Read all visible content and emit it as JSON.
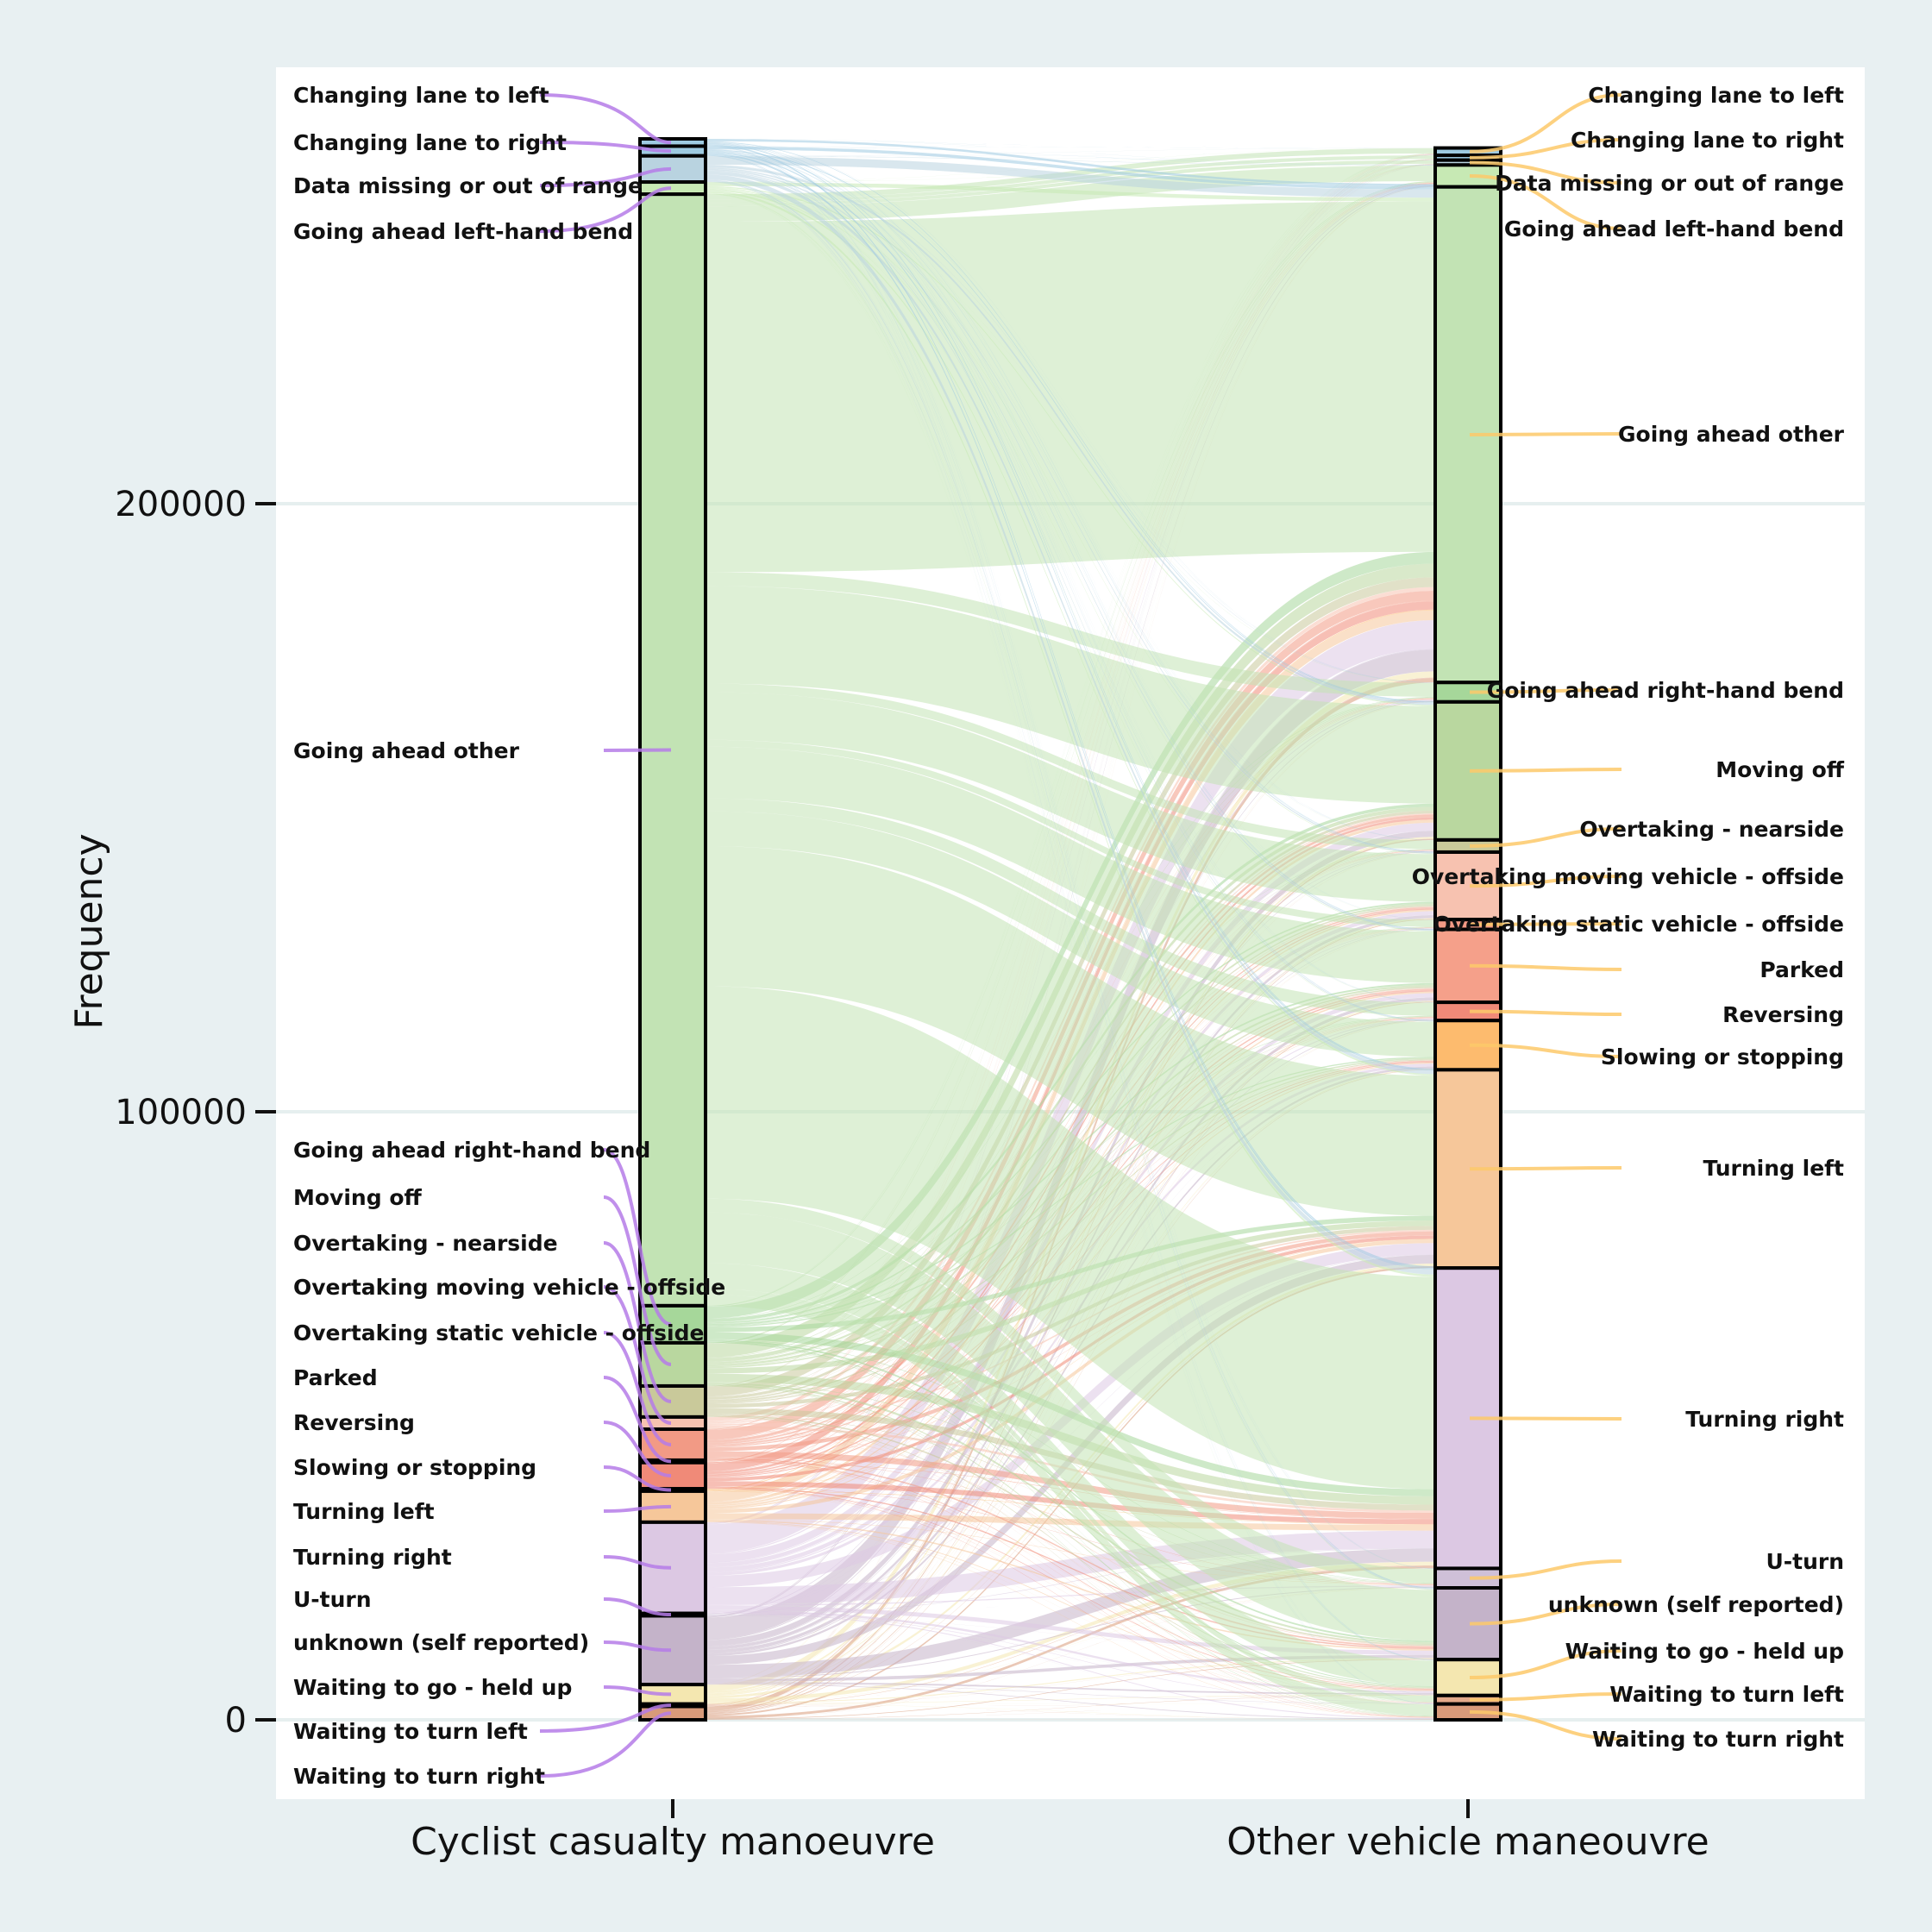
{
  "chart_data": {
    "type": "alluvial",
    "title": "",
    "ylabel": "Frequency",
    "xlabel": "",
    "axes": [
      "Cyclist casualty manoeuvre",
      "Other vehicle maneouvre"
    ],
    "y_ticks": [
      0,
      100000,
      200000
    ],
    "ylim": [
      -13000,
      272000
    ],
    "grid": true,
    "categories": [
      "Changing lane to left",
      "Changing lane to right",
      "Data missing or out of range",
      "Going ahead left-hand bend",
      "Going ahead other",
      "Going ahead right-hand bend",
      "Moving off",
      "Overtaking - nearside",
      "Overtaking moving vehicle - offside",
      "Overtaking static vehicle - offside",
      "Parked",
      "Reversing",
      "Slowing or stopping",
      "Turning left",
      "Turning right",
      "U-turn",
      "unknown (self reported)",
      "Waiting to go - held up",
      "Waiting to turn left",
      "Waiting to turn right"
    ],
    "colors": {
      "Changing lane to left": "#9ecae1",
      "Changing lane to right": "#9ecae1",
      "Data missing or out of range": "#b9d3e0",
      "Going ahead left-hand bend": "#c7e9b4",
      "Going ahead other": "#c2e3b4",
      "Going ahead right-hand bend": "#a6d79a",
      "Moving off": "#b9d79f",
      "Overtaking - nearside": "#c9c99a",
      "Overtaking moving vehicle - offside": "#f7c2b0",
      "Overtaking static vehicle - offside": "#f29a85",
      "Parked": "#f5a08a",
      "Reversing": "#f08a78",
      "Slowing or stopping": "#fdbb6e",
      "Turning left": "#f6c79a",
      "Turning right": "#dcc8e3",
      "U-turn": "#cfc0d8",
      "unknown (self reported)": "#c4b3c9",
      "Waiting to go - held up": "#f4e7b0",
      "Waiting to turn left": "#e3a98a",
      "Waiting to turn right": "#d89a7a"
    },
    "left_totals": {
      "Changing lane to left": 1200,
      "Changing lane to right": 1600,
      "Data missing or out of range": 4300,
      "Going ahead left-hand bend": 2000,
      "Going ahead other": 182800,
      "Going ahead right-hand bend": 6100,
      "Moving off": 7100,
      "Overtaking - nearside": 5100,
      "Overtaking moving vehicle - offside": 2000,
      "Overtaking static vehicle - offside": 5100,
      "Parked": 400,
      "Reversing": 4300,
      "Slowing or stopping": 400,
      "Turning left": 5100,
      "Turning right": 15000,
      "U-turn": 400,
      "unknown (self reported)": 11300,
      "Waiting to go - held up": 3200,
      "Waiting to turn left": 400,
      "Waiting to turn right": 2200
    },
    "right_totals": {
      "Changing lane to left": 1200,
      "Changing lane to right": 800,
      "Data missing or out of range": 800,
      "Going ahead left-hand bend": 3600,
      "Going ahead other": 81500,
      "Going ahead right-hand bend": 3200,
      "Moving off": 22700,
      "Overtaking - nearside": 2000,
      "Overtaking moving vehicle - offside": 11100,
      "Overtaking static vehicle - offside": 1600,
      "Parked": 12000,
      "Reversing": 3000,
      "Slowing or stopping": 8100,
      "Turning left": 32600,
      "Turning right": 49400,
      "U-turn": 3200,
      "unknown (self reported)": 11800,
      "Waiting to go - held up": 5900,
      "Waiting to turn left": 1400,
      "Waiting to turn right": 2600
    }
  }
}
